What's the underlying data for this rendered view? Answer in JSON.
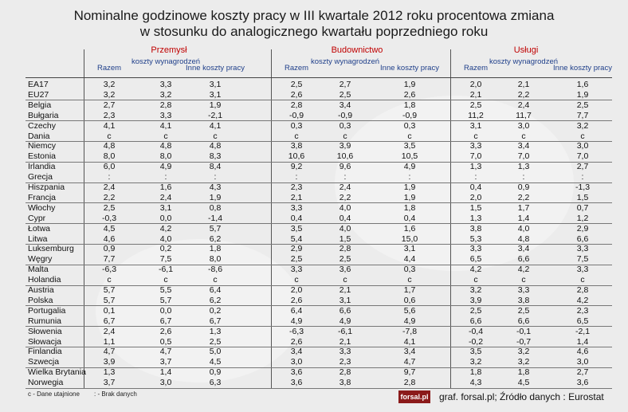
{
  "title_lines": [
    "Nominalne godzinowe koszty pracy w III kwartale 2012 roku procentowa zmiana",
    "w stosunku do analogicznego kwartału poprzedniego roku"
  ],
  "sections": [
    "Przemysł",
    "Budownictwo",
    "Usługi"
  ],
  "column_headers": [
    "Razem",
    "koszty wynagrodzeń",
    "Inne koszty pracy"
  ],
  "footer": {
    "note_c": "c - Dane utajnione",
    "note_colon": ": - Brak danych",
    "logo": "forsal.pl",
    "source": "graf. forsal.pl; Źródło danych : Eurostat"
  },
  "chart_data": {
    "type": "table",
    "columns": [
      "Przemysł Razem",
      "Przemysł koszty wynagrodzeń",
      "Przemysł Inne koszty pracy",
      "Budownictwo Razem",
      "Budownictwo koszty wynagrodzeń",
      "Budownictwo Inne koszty pracy",
      "Usługi Razem",
      "Usługi koszty wynagrodzeń",
      "Usługi Inne koszty pracy"
    ],
    "rows": [
      {
        "name": "EA17",
        "values": [
          "3,2",
          "3,3",
          "3,1",
          "2,5",
          "2,7",
          "1,9",
          "2,0",
          "2,1",
          "1,6"
        ]
      },
      {
        "name": "EU27",
        "values": [
          "3,2",
          "3,2",
          "3,1",
          "2,6",
          "2,5",
          "2,6",
          "2,1",
          "2,2",
          "1,9"
        ]
      },
      {
        "name": "Belgia",
        "values": [
          "2,7",
          "2,8",
          "1,9",
          "2,8",
          "3,4",
          "1,8",
          "2,5",
          "2,4",
          "2,5"
        ]
      },
      {
        "name": "Bułgaria",
        "values": [
          "2,3",
          "3,3",
          "-2,1",
          "-0,9",
          "-0,9",
          "-0,9",
          "11,2",
          "11,7",
          "7,7"
        ]
      },
      {
        "name": "Czechy",
        "values": [
          "4,1",
          "4,1",
          "4,1",
          "0,3",
          "0,3",
          "0,3",
          "3,1",
          "3,0",
          "3,2"
        ]
      },
      {
        "name": "Dania",
        "values": [
          "c",
          "c",
          "c",
          "c",
          "c",
          "c",
          "c",
          "c",
          "c"
        ]
      },
      {
        "name": "Niemcy",
        "values": [
          "4,8",
          "4,8",
          "4,8",
          "3,8",
          "3,9",
          "3,5",
          "3,3",
          "3,4",
          "3,0"
        ]
      },
      {
        "name": "Estonia",
        "values": [
          "8,0",
          "8,0",
          "8,3",
          "10,6",
          "10,6",
          "10,5",
          "7,0",
          "7,0",
          "7,0"
        ]
      },
      {
        "name": "Irlandia",
        "values": [
          "6,0",
          "4,9",
          "8,4",
          "9,2",
          "9,6",
          "4,9",
          "1,3",
          "1,3",
          "2,7"
        ]
      },
      {
        "name": "Grecja",
        "values": [
          ":",
          ":",
          ":",
          ":",
          ":",
          ":",
          ":",
          ":",
          ":"
        ]
      },
      {
        "name": "Hiszpania",
        "values": [
          "2,4",
          "1,6",
          "4,3",
          "2,3",
          "2,4",
          "1,9",
          "0,4",
          "0,9",
          "-1,3"
        ]
      },
      {
        "name": "Francja",
        "values": [
          "2,2",
          "2,4",
          "1,9",
          "2,1",
          "2,2",
          "1,9",
          "2,0",
          "2,2",
          "1,5"
        ]
      },
      {
        "name": "Włochy",
        "values": [
          "2,5",
          "3,1",
          "0,8",
          "3,3",
          "4,0",
          "1,8",
          "1,5",
          "1,7",
          "0,7"
        ]
      },
      {
        "name": "Cypr",
        "values": [
          "-0,3",
          "0,0",
          "-1,4",
          "0,4",
          "0,4",
          "0,4",
          "1,3",
          "1,4",
          "1,2"
        ]
      },
      {
        "name": "Łotwa",
        "values": [
          "4,5",
          "4,2",
          "5,7",
          "3,5",
          "4,0",
          "1,6",
          "3,8",
          "4,0",
          "2,9"
        ]
      },
      {
        "name": "Litwa",
        "values": [
          "4,6",
          "4,0",
          "6,2",
          "5,4",
          "1,5",
          "15,0",
          "5,3",
          "4,8",
          "6,6"
        ]
      },
      {
        "name": "Luksemburg",
        "values": [
          "0,9",
          "0,2",
          "1,8",
          "2,9",
          "2,8",
          "3,1",
          "3,3",
          "3,4",
          "3,3"
        ]
      },
      {
        "name": "Węgry",
        "values": [
          "7,7",
          "7,5",
          "8,0",
          "2,5",
          "2,5",
          "4,4",
          "6,5",
          "6,6",
          "7,5"
        ]
      },
      {
        "name": "Malta",
        "values": [
          "-6,3",
          "-6,1",
          "-8,6",
          "3,3",
          "3,6",
          "0,3",
          "4,2",
          "4,2",
          "3,3"
        ]
      },
      {
        "name": "Holandia",
        "values": [
          "c",
          "c",
          "c",
          "c",
          "c",
          "c",
          "c",
          "c",
          "c"
        ]
      },
      {
        "name": "Austria",
        "values": [
          "5,7",
          "5,5",
          "6,4",
          "2,0",
          "2,1",
          "1,7",
          "3,2",
          "3,3",
          "2,8"
        ]
      },
      {
        "name": "Polska",
        "values": [
          "5,7",
          "5,7",
          "6,2",
          "2,6",
          "3,1",
          "0,6",
          "3,9",
          "3,8",
          "4,2"
        ]
      },
      {
        "name": "Portugalia",
        "values": [
          "0,1",
          "0,0",
          "0,2",
          "6,4",
          "6,6",
          "5,6",
          "2,5",
          "2,5",
          "2,3"
        ]
      },
      {
        "name": "Rumunia",
        "values": [
          "6,7",
          "6,7",
          "6,7",
          "4,9",
          "4,9",
          "4,9",
          "6,6",
          "6,6",
          "6,5"
        ]
      },
      {
        "name": "Słowenia",
        "values": [
          "2,4",
          "2,6",
          "1,3",
          "-6,3",
          "-6,1",
          "-7,8",
          "-0,4",
          "-0,1",
          "-2,1"
        ]
      },
      {
        "name": "Słowacja",
        "values": [
          "1,1",
          "0,5",
          "2,5",
          "2,6",
          "2,1",
          "4,1",
          "-0,2",
          "-0,7",
          "1,4"
        ]
      },
      {
        "name": "Finlandia",
        "values": [
          "4,7",
          "4,7",
          "5,0",
          "3,4",
          "3,3",
          "3,4",
          "3,5",
          "3,2",
          "4,6"
        ]
      },
      {
        "name": "Szwecja",
        "values": [
          "3,9",
          "3,7",
          "4,5",
          "3,0",
          "2,3",
          "4,7",
          "3,2",
          "3,2",
          "3,0"
        ]
      },
      {
        "name": "Wielka Brytania",
        "values": [
          "1,3",
          "1,4",
          "0,9",
          "3,6",
          "2,8",
          "9,7",
          "1,8",
          "1,8",
          "2,7"
        ]
      },
      {
        "name": "Norwegia",
        "values": [
          "3,7",
          "3,0",
          "6,3",
          "3,6",
          "3,8",
          "2,8",
          "4,3",
          "4,5",
          "3,6"
        ]
      }
    ]
  }
}
